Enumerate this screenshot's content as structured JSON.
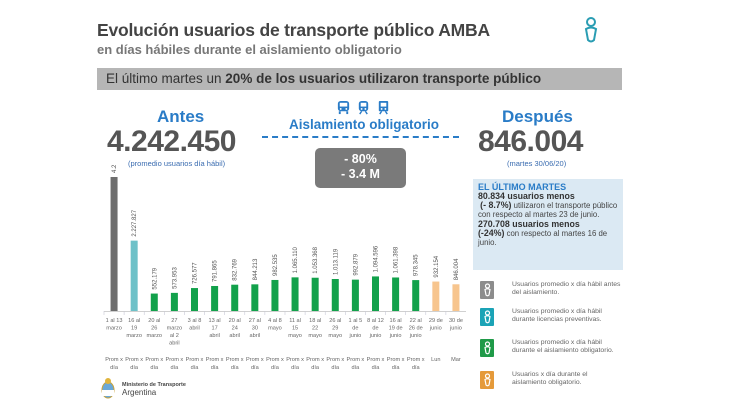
{
  "header": {
    "title": "Evolución usuarios de transporte público AMBA",
    "subtitle": "en días hábiles durante el aislamiento obligatorio"
  },
  "banner": {
    "prefix": "El último martes un ",
    "bold": "20% de los usuarios utilizaron transporte público"
  },
  "antes": {
    "label": "Antes",
    "value": "4.242.450",
    "note": "(promedio usuarios día hábil)"
  },
  "despues": {
    "label": "Después",
    "value": "846.004",
    "note": "(martes 30/06/20)"
  },
  "center": {
    "icons": [
      "bus-icon",
      "train-icon",
      "subway-icon"
    ],
    "label": "Aislamiento obligatorio",
    "delta_pct": "- 80%",
    "delta_abs": "- 3.4 M"
  },
  "info": {
    "title": "EL ÚLTIMO MARTES",
    "line1_bold": "80.834 usuarios menos",
    "line2_bold": "(- 8.7%)",
    "line2_rest": " utilizaron el transporte público con respecto al martes 23 de junio.",
    "line3_bold": "270.708 usuarios menos",
    "line4_bold": "(-24%)",
    "line4_rest": " con respecto al martes 16 de junio."
  },
  "legend": [
    {
      "label": "Usuarios promedio x día hábil antes del aislamiento.",
      "color": "#8c8c8c"
    },
    {
      "label": "Usuarios promedio x día hábil durante licencias preventivas.",
      "color": "#1ba3b6"
    },
    {
      "label": "Usuarios promedio x día hábil durante el aislamiento obligatorio.",
      "color": "#1f9a48"
    },
    {
      "label": "Usuarios x día durante el aislamiento obligatorio.",
      "color": "#e59a3a"
    }
  ],
  "colors": {
    "brand_blue": "#2a7cc7",
    "gray_bar": "#6e6e6e",
    "teal_bar": "#6ec1c8",
    "green_bar": "#12a14b",
    "orange_bar": "#f7c58e"
  },
  "logo": {
    "line1": "Ministerio de Transporte",
    "line2": "Argentina"
  },
  "chart_data": {
    "type": "bar",
    "title": "Evolución usuarios de transporte público AMBA",
    "xlabel": "",
    "ylabel": "",
    "ylim": [
      0,
      4242450
    ],
    "grid": false,
    "categories": [
      "1 al 13 marzo",
      "16 al 19 marzo",
      "20 al 26 marzo",
      "27 marzo al 2 abril",
      "3 al 8 abril",
      "13 al 17 abril",
      "20 al 24 abril",
      "27 al 30 abril",
      "4 al 8 mayo",
      "11 al 15 mayo",
      "18 al 22 mayo",
      "26 al 29 mayo",
      "1 al 5 de junio",
      "8 al 12 de junio",
      "16 al 19 de junio",
      "22 al 26 de junio",
      "29 de junio",
      "30 de junio"
    ],
    "category_lines": [
      [
        "1 al 13",
        "marzo"
      ],
      [
        "16 al",
        "19",
        "marzo"
      ],
      [
        "20 al",
        "26",
        "marzo"
      ],
      [
        "27",
        "marzo",
        "al 2",
        "abril"
      ],
      [
        "3 al 8",
        "abril"
      ],
      [
        "13 al",
        "17",
        "abril"
      ],
      [
        "20 al",
        "24",
        "abril"
      ],
      [
        "27 al",
        "30",
        "abril"
      ],
      [
        "4 al 8",
        "mayo"
      ],
      [
        "11 al",
        "15",
        "mayo"
      ],
      [
        "18 al",
        "22",
        "mayo"
      ],
      [
        "26 al",
        "29",
        "mayo"
      ],
      [
        "1 al 5",
        "de",
        "junio"
      ],
      [
        "8 al 12",
        "de",
        "junio"
      ],
      [
        "16 al",
        "19 de",
        "junio"
      ],
      [
        "22 al",
        "26 de",
        "junio"
      ],
      [
        "29 de",
        "junio"
      ],
      [
        "30 de",
        "junio"
      ]
    ],
    "sublabels": [
      [
        "Prom x",
        "día"
      ],
      [
        "Prom x",
        "día"
      ],
      [
        "Prom x",
        "día"
      ],
      [
        "Prom x",
        "día"
      ],
      [
        "Prom x",
        "día"
      ],
      [
        "Prom x",
        "día"
      ],
      [
        "Prom x",
        "día"
      ],
      [
        "Prom x",
        "día"
      ],
      [
        "Prom x",
        "día"
      ],
      [
        "Prom x",
        "día"
      ],
      [
        "Prom x",
        "día"
      ],
      [
        "Prom x",
        "día"
      ],
      [
        "Prom x",
        "día"
      ],
      [
        "Prom x",
        "día"
      ],
      [
        "Prom x",
        "día"
      ],
      [
        "Prom x",
        "día"
      ],
      [
        "Lun"
      ],
      [
        "Mar"
      ]
    ],
    "values": [
      4242450,
      2227827,
      552179,
      573953,
      726577,
      791865,
      832769,
      844213,
      982535,
      1065110,
      1053368,
      1013119,
      992879,
      1094596,
      1061398,
      978345,
      932154,
      846004
    ],
    "data_labels": [
      "4.242.450",
      "2.227.827",
      "552.179",
      "573.953",
      "726.577",
      "791.865",
      "832.769",
      "844.213",
      "982.535",
      "1.065.110",
      "1.053.368",
      "1.013.119",
      "992.879",
      "1.094.596",
      "1.061.398",
      "978.345",
      "932.154",
      "846.004"
    ],
    "series_group": [
      "before",
      "preventive",
      "isolation",
      "isolation",
      "isolation",
      "isolation",
      "isolation",
      "isolation",
      "isolation",
      "isolation",
      "isolation",
      "isolation",
      "isolation",
      "isolation",
      "isolation",
      "isolation",
      "daily",
      "daily"
    ]
  }
}
